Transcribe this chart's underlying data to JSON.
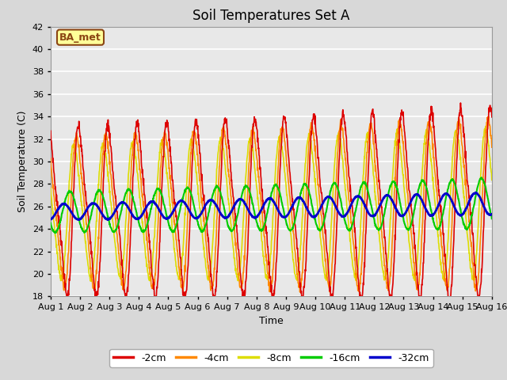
{
  "title": "Soil Temperatures Set A",
  "xlabel": "Time",
  "ylabel": "Soil Temperature (C)",
  "ylim": [
    18,
    42
  ],
  "xlim": [
    0,
    15
  ],
  "xtick_labels": [
    "Aug 1",
    "Aug 2",
    "Aug 3",
    "Aug 4",
    "Aug 5",
    "Aug 6",
    "Aug 7",
    "Aug 8",
    "Aug 9",
    "Aug 10",
    "Aug 11",
    "Aug 12",
    "Aug 13",
    "Aug 14",
    "Aug 15",
    "Aug 16"
  ],
  "xtick_positions": [
    0,
    1,
    2,
    3,
    4,
    5,
    6,
    7,
    8,
    9,
    10,
    11,
    12,
    13,
    14,
    15
  ],
  "ytick_positions": [
    18,
    20,
    22,
    24,
    26,
    28,
    30,
    32,
    34,
    36,
    38,
    40,
    42
  ],
  "line_colors": [
    "#dd0000",
    "#ff8800",
    "#dddd00",
    "#00cc00",
    "#0000cc"
  ],
  "line_labels": [
    "-2cm",
    "-4cm",
    "-8cm",
    "-16cm",
    "-32cm"
  ],
  "line_widths": [
    1.2,
    1.2,
    1.2,
    1.5,
    2.0
  ],
  "background_color": "#e8e8e8",
  "grid_color": "#ffffff",
  "annotation_text": "BA_met",
  "annotation_bg": "#ffff99",
  "annotation_border": "#8b4513",
  "title_fontsize": 12,
  "axis_fontsize": 9,
  "tick_fontsize": 8,
  "legend_fontsize": 9,
  "fig_facecolor": "#d8d8d8"
}
